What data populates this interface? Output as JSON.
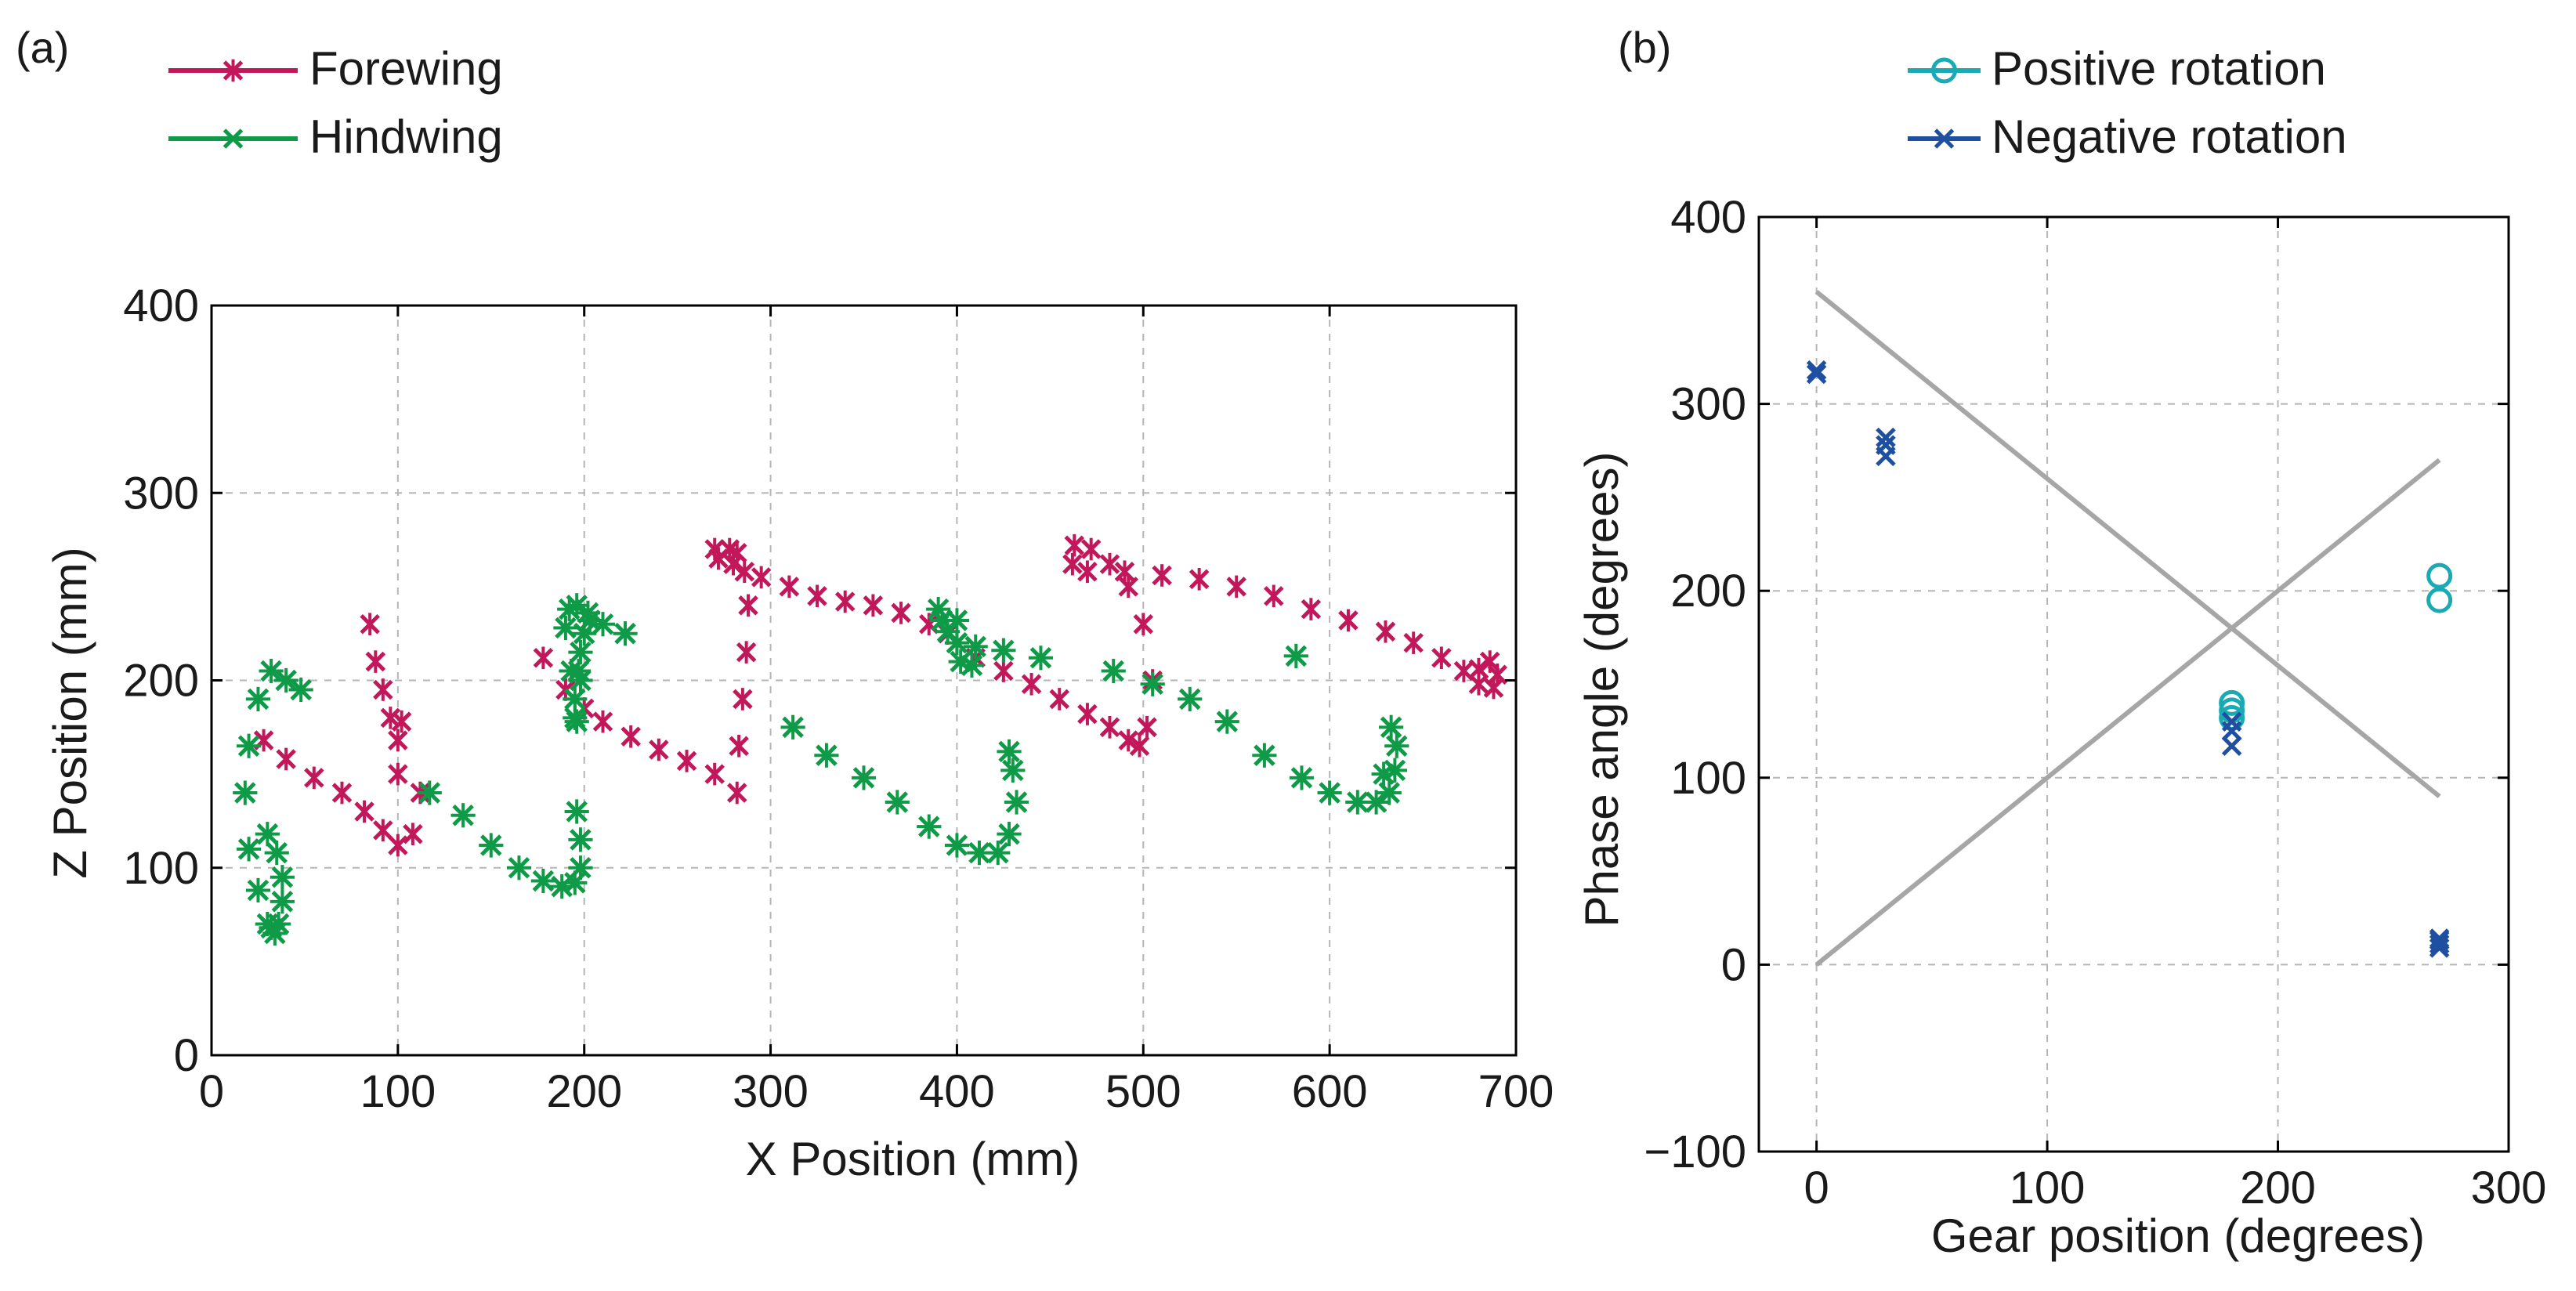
{
  "chart_data": [
    {
      "panel_label": "(a)",
      "type": "scatter",
      "xlabel": "X Position (mm)",
      "ylabel": "Z Position (mm)",
      "xlim": [
        0,
        700
      ],
      "ylim": [
        0,
        400
      ],
      "xticks": [
        0,
        100,
        200,
        300,
        400,
        500,
        600,
        700
      ],
      "yticks": [
        0,
        100,
        200,
        300,
        400
      ],
      "grid": true,
      "legend_position": "top-left",
      "series": [
        {
          "name": "Forewing",
          "color": "#c2185b",
          "marker": "x-asterisk",
          "line_in_legend": true,
          "x": [
            28,
            40,
            55,
            70,
            82,
            92,
            100,
            108,
            112,
            85,
            88,
            92,
            96,
            100,
            102,
            100,
            178,
            190,
            200,
            210,
            225,
            240,
            255,
            270,
            282,
            283,
            285,
            287,
            288,
            286,
            282,
            278,
            272,
            270,
            280,
            295,
            310,
            325,
            340,
            355,
            370,
            385,
            395,
            400,
            410,
            425,
            440,
            455,
            470,
            482,
            492,
            498,
            502,
            505,
            500,
            492,
            482,
            472,
            463,
            462,
            470,
            490,
            510,
            530,
            550,
            570,
            590,
            610,
            630,
            645,
            660,
            672,
            680,
            688,
            690,
            686,
            680
          ],
          "y": [
            168,
            158,
            148,
            140,
            130,
            120,
            112,
            118,
            140,
            230,
            210,
            195,
            180,
            168,
            178,
            150,
            212,
            195,
            185,
            178,
            170,
            163,
            157,
            150,
            140,
            165,
            190,
            215,
            240,
            258,
            268,
            270,
            265,
            270,
            262,
            255,
            250,
            245,
            242,
            240,
            236,
            230,
            225,
            220,
            212,
            205,
            198,
            190,
            182,
            175,
            168,
            165,
            175,
            200,
            230,
            250,
            262,
            270,
            272,
            262,
            258,
            258,
            256,
            254,
            250,
            245,
            238,
            232,
            226,
            220,
            212,
            205,
            198,
            196,
            203,
            210,
            206
          ]
        },
        {
          "name": "Hindwing",
          "color": "#0e9a47",
          "marker": "asterisk",
          "line_in_legend": true,
          "x": [
            30,
            25,
            20,
            18,
            20,
            25,
            32,
            40,
            48,
            30,
            35,
            38,
            38,
            36,
            34,
            32,
            117,
            135,
            150,
            165,
            178,
            188,
            195,
            198,
            198,
            196,
            195,
            193,
            190,
            192,
            196,
            202,
            210,
            222,
            196,
            195,
            197,
            198,
            200,
            203,
            198,
            312,
            330,
            350,
            368,
            385,
            400,
            412,
            422,
            428,
            432,
            430,
            428,
            400,
            390,
            392,
            395,
            400,
            410,
            425,
            445,
            484,
            505,
            525,
            545,
            565,
            585,
            600,
            615,
            625,
            632,
            635,
            636,
            633,
            629,
            582,
            402,
            408
          ],
          "y": [
            70,
            88,
            110,
            140,
            165,
            190,
            205,
            200,
            195,
            118,
            108,
            95,
            82,
            70,
            65,
            68,
            140,
            128,
            112,
            100,
            93,
            90,
            92,
            100,
            115,
            130,
            180,
            205,
            228,
            238,
            240,
            236,
            230,
            225,
            178,
            190,
            205,
            215,
            225,
            232,
            200,
            175,
            160,
            148,
            135,
            122,
            112,
            108,
            108,
            118,
            135,
            152,
            162,
            232,
            238,
            232,
            226,
            220,
            218,
            216,
            212,
            205,
            198,
            190,
            178,
            160,
            148,
            140,
            135,
            135,
            140,
            152,
            165,
            175,
            150,
            213,
            210,
            208
          ]
        }
      ]
    },
    {
      "panel_label": "(b)",
      "type": "scatter",
      "xlabel": "Gear position (degrees)",
      "ylabel": "Phase angle (degrees)",
      "xlim": [
        -25,
        300
      ],
      "ylim": [
        -100,
        400
      ],
      "xticks": [
        0,
        100,
        200,
        300
      ],
      "yticks": [
        -100,
        0,
        100,
        200,
        300,
        400
      ],
      "grid": true,
      "legend_position": "top",
      "series": [
        {
          "name": "Positive rotation",
          "color": "#1aaab4",
          "marker": "circle",
          "x": [
            180,
            180,
            180,
            270,
            270
          ],
          "y": [
            132,
            140,
            136,
            195,
            208
          ]
        },
        {
          "name": "Negative rotation",
          "color": "#1f4fa0",
          "marker": "x",
          "x": [
            0,
            0,
            30,
            30,
            30,
            180,
            180,
            180,
            270,
            270,
            270,
            270
          ],
          "y": [
            316,
            318,
            272,
            278,
            282,
            117,
            125,
            130,
            9,
            11,
            13,
            14
          ]
        }
      ],
      "reference_lines": [
        {
          "x": [
            0,
            270
          ],
          "y": [
            360,
            90
          ],
          "color": "#a6a6a6"
        },
        {
          "x": [
            0,
            270
          ],
          "y": [
            0,
            270
          ],
          "color": "#a6a6a6"
        }
      ]
    }
  ]
}
